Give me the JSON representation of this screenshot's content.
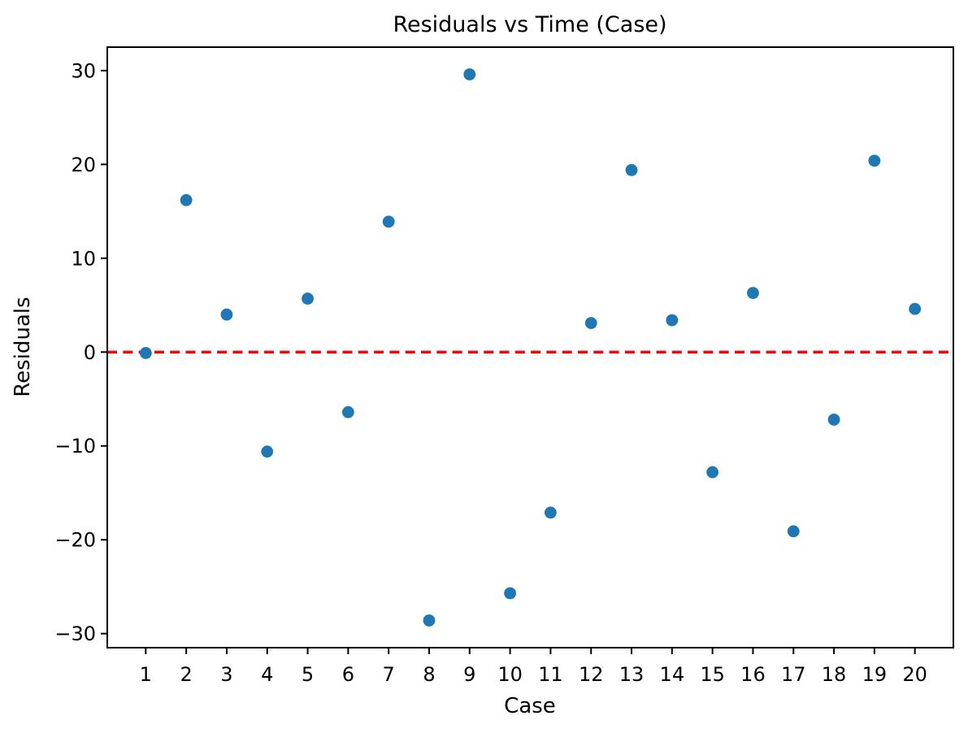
{
  "chart_data": {
    "type": "scatter",
    "title": "Residuals vs Time (Case)",
    "xlabel": "Case",
    "ylabel": "Residuals",
    "x": [
      1,
      2,
      3,
      4,
      5,
      6,
      7,
      8,
      9,
      10,
      11,
      12,
      13,
      14,
      15,
      16,
      17,
      18,
      19,
      20
    ],
    "y": [
      -0.1,
      16.2,
      4.0,
      -10.6,
      5.7,
      -6.4,
      13.9,
      -28.6,
      29.6,
      -25.7,
      -17.1,
      3.1,
      19.4,
      3.4,
      -12.8,
      6.3,
      -19.1,
      -7.2,
      20.4,
      4.6
    ],
    "xticks": [
      1,
      2,
      3,
      4,
      5,
      6,
      7,
      8,
      9,
      10,
      11,
      12,
      13,
      14,
      15,
      16,
      17,
      18,
      19,
      20
    ],
    "yticks": [
      -30,
      -20,
      -10,
      0,
      10,
      20,
      30
    ],
    "xlim": [
      0.05,
      20.95
    ],
    "ylim": [
      -31.5,
      32.5
    ],
    "grid": false,
    "legend": null,
    "zero_line": {
      "y": 0,
      "color": "#ff0000",
      "style": "dashed"
    },
    "marker_color": "#1f77b4",
    "spine_color": "#000000"
  }
}
